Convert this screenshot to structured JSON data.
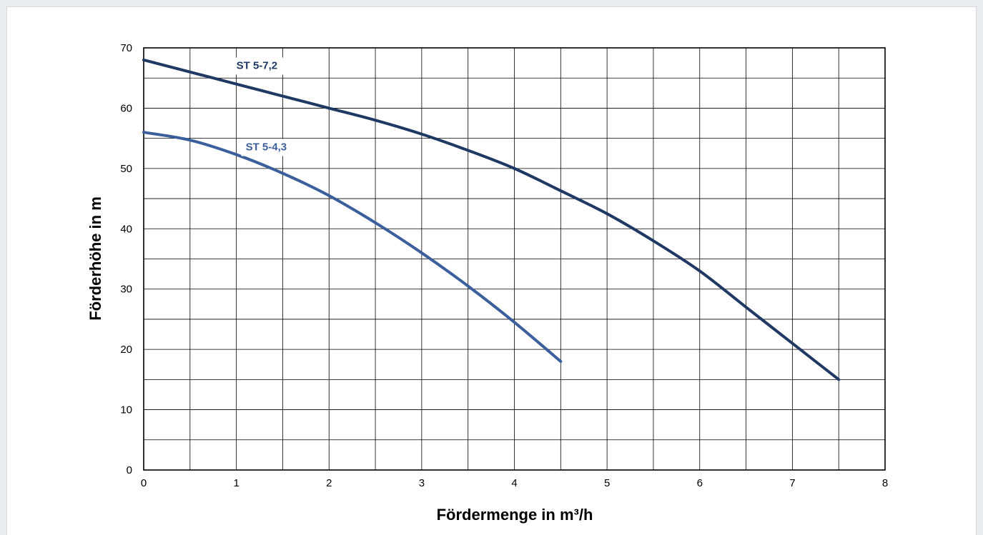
{
  "chart_data": {
    "type": "line",
    "xlabel": "Fördermenge in m³/h",
    "ylabel": "Förderhöhe in m",
    "xlim": [
      0,
      8
    ],
    "ylim": [
      0,
      70
    ],
    "x_ticks": [
      "0",
      "1",
      "2",
      "3",
      "4",
      "5",
      "6",
      "7",
      "8"
    ],
    "y_ticks": [
      "0",
      "10",
      "20",
      "30",
      "40",
      "50",
      "60",
      "70"
    ],
    "x_grid_step": 0.5,
    "y_grid_step": 5,
    "grid": true,
    "series": [
      {
        "name": "ST 5-7,2",
        "color": "#1f3864",
        "label_at": [
          1.0,
          66.5
        ],
        "points": [
          [
            0,
            68
          ],
          [
            0.5,
            66
          ],
          [
            1,
            64
          ],
          [
            1.5,
            62
          ],
          [
            2,
            60
          ],
          [
            2.5,
            58
          ],
          [
            3,
            55.7
          ],
          [
            3.5,
            53
          ],
          [
            4,
            50
          ],
          [
            4.5,
            46.3
          ],
          [
            5,
            42.5
          ],
          [
            5.5,
            38
          ],
          [
            6,
            33
          ],
          [
            6.5,
            27
          ],
          [
            7,
            21
          ],
          [
            7.5,
            15
          ]
        ]
      },
      {
        "name": "ST 5-4,3",
        "color": "#3a5f9c",
        "label_at": [
          1.1,
          53
        ],
        "points": [
          [
            0,
            56
          ],
          [
            0.5,
            54.7
          ],
          [
            1,
            52.3
          ],
          [
            1.5,
            49.2
          ],
          [
            2,
            45.5
          ],
          [
            2.5,
            41
          ],
          [
            3,
            36
          ],
          [
            3.5,
            30.5
          ],
          [
            4,
            24.5
          ],
          [
            4.5,
            18
          ]
        ]
      }
    ]
  }
}
